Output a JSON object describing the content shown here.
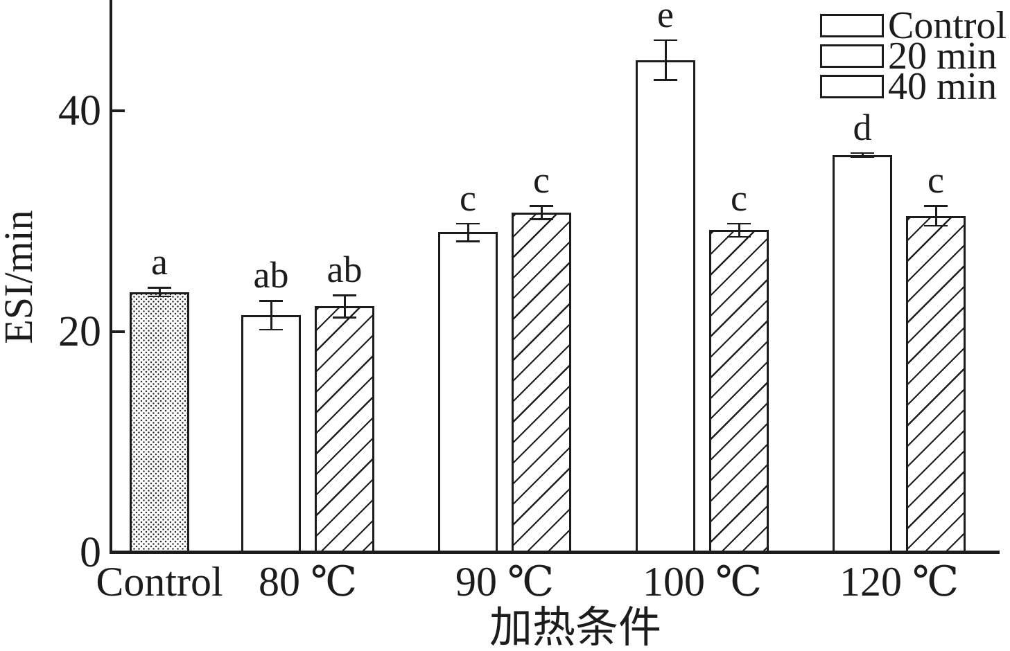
{
  "page": {
    "background_color": "#ffffff",
    "ink_color": "#1c1c1c"
  },
  "chart_data": {
    "type": "bar",
    "title": "",
    "xlabel": "加热条件",
    "ylabel": "ESI/min",
    "ylim": [
      0,
      50
    ],
    "yticks": [
      0,
      20,
      40
    ],
    "grid": false,
    "categories": [
      "Control",
      "80 ℃",
      "90 ℃",
      "100 ℃",
      "120 ℃"
    ],
    "series": [
      {
        "name": "Control",
        "pattern": "dots",
        "values": [
          23.6,
          null,
          null,
          null,
          null
        ]
      },
      {
        "name": "20 min",
        "pattern": "plain",
        "values": [
          null,
          21.5,
          29.0,
          44.6,
          36.0
        ]
      },
      {
        "name": "40 min",
        "pattern": "hatch",
        "values": [
          null,
          22.3,
          30.8,
          29.2,
          30.5
        ]
      }
    ],
    "bars": [
      {
        "category": "Control",
        "series": "Control",
        "pattern": "dots",
        "value": 23.6,
        "error": 0.4,
        "letter": "a"
      },
      {
        "category": "80 ℃",
        "series": "20 min",
        "pattern": "plain",
        "value": 21.5,
        "error": 1.3,
        "letter": "ab"
      },
      {
        "category": "80 ℃",
        "series": "40 min",
        "pattern": "hatch",
        "value": 22.3,
        "error": 1.0,
        "letter": "ab"
      },
      {
        "category": "90 ℃",
        "series": "20 min",
        "pattern": "plain",
        "value": 29.0,
        "error": 0.8,
        "letter": "c"
      },
      {
        "category": "90 ℃",
        "series": "40 min",
        "pattern": "hatch",
        "value": 30.8,
        "error": 0.6,
        "letter": "c"
      },
      {
        "category": "100 ℃",
        "series": "20 min",
        "pattern": "plain",
        "value": 44.6,
        "error": 1.8,
        "letter": "e"
      },
      {
        "category": "100 ℃",
        "series": "40 min",
        "pattern": "hatch",
        "value": 29.2,
        "error": 0.6,
        "letter": "c"
      },
      {
        "category": "120 ℃",
        "series": "20 min",
        "pattern": "plain",
        "value": 36.0,
        "error": 0.2,
        "letter": "d"
      },
      {
        "category": "120 ℃",
        "series": "40 min",
        "pattern": "hatch",
        "value": 30.5,
        "error": 0.9,
        "letter": "c"
      }
    ],
    "legend": {
      "position": "top-right",
      "entries": [
        {
          "label": "Control",
          "pattern": "dots"
        },
        {
          "label": "20 min",
          "pattern": "plain"
        },
        {
          "label": "40 min",
          "pattern": "hatch"
        }
      ]
    }
  }
}
